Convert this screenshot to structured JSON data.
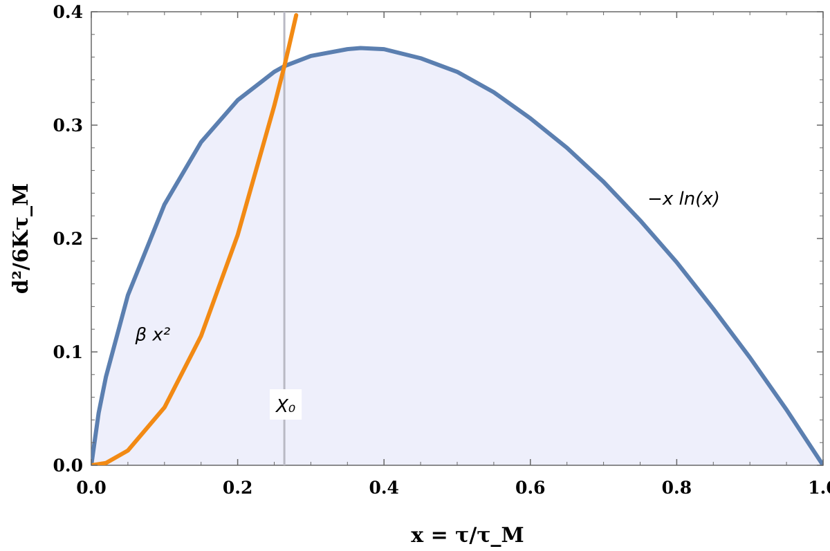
{
  "chart_data": {
    "type": "area",
    "xlabel": "x = τ/τ_M",
    "ylabel": "d²/6Kτ_M",
    "xlim": [
      0,
      1
    ],
    "ylim": [
      0,
      0.4
    ],
    "x_ticks": [
      "0.0",
      "0.2",
      "0.4",
      "0.6",
      "0.8",
      "1.0"
    ],
    "y_ticks": [
      "0.0",
      "0.1",
      "0.2",
      "0.3",
      "0.4"
    ],
    "grid": false,
    "legend": "none",
    "series": [
      {
        "name": "−x ln(x)",
        "color": "#5b7fb0",
        "filled": true,
        "fill_color": "#eeeffb",
        "x": [
          0.0,
          0.01,
          0.02,
          0.05,
          0.1,
          0.15,
          0.2,
          0.25,
          0.2638,
          0.3,
          0.35,
          0.3679,
          0.4,
          0.45,
          0.5,
          0.55,
          0.6,
          0.65,
          0.7,
          0.75,
          0.8,
          0.85,
          0.9,
          0.95,
          1.0
        ],
        "y": [
          0.0,
          0.046,
          0.078,
          0.15,
          0.23,
          0.285,
          0.322,
          0.347,
          0.352,
          0.361,
          0.367,
          0.368,
          0.367,
          0.359,
          0.347,
          0.329,
          0.306,
          0.28,
          0.25,
          0.216,
          0.179,
          0.138,
          0.095,
          0.049,
          0.0
        ]
      },
      {
        "name": "β x²",
        "color": "#f28a14",
        "filled": false,
        "x": [
          0.0,
          0.02,
          0.05,
          0.1,
          0.15,
          0.2,
          0.25,
          0.2638,
          0.27,
          0.28
        ],
        "y": [
          0.0,
          0.002,
          0.013,
          0.051,
          0.114,
          0.203,
          0.317,
          0.352,
          0.369,
          0.397
        ]
      }
    ],
    "marker_line": {
      "x": 0.2638,
      "label": "X₀",
      "color": "#b9b9c4"
    },
    "annotations": [
      {
        "text": "−x ln(x)",
        "x": 0.76,
        "y": 0.23
      },
      {
        "text": "β x²",
        "x": 0.06,
        "y": 0.11
      }
    ]
  }
}
